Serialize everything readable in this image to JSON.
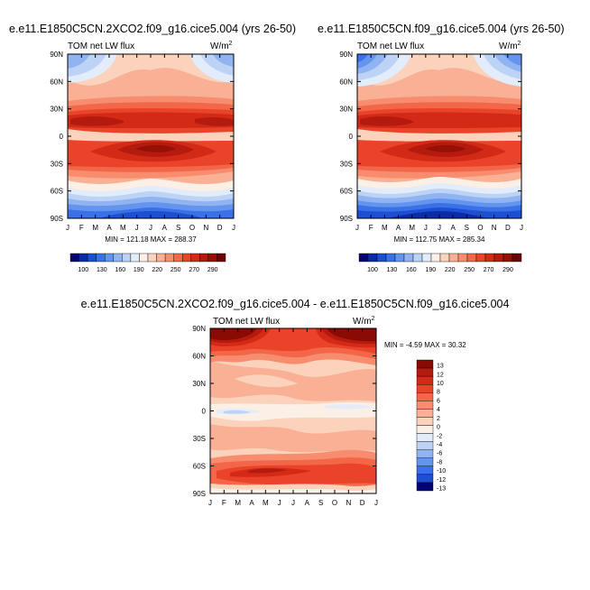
{
  "figure": {
    "units_prefix": "W/m",
    "units_exponent": "2",
    "months": [
      "J",
      "F",
      "M",
      "A",
      "M",
      "J",
      "J",
      "A",
      "S",
      "O",
      "N",
      "D",
      "J"
    ],
    "lat_labels": [
      "90N",
      "60N",
      "30N",
      "0",
      "30S",
      "60S",
      "90S"
    ]
  },
  "chart_data": [
    {
      "type": "heatmap",
      "id": "top_left",
      "title": "e.e11.E1850C5CN.2XCO2.f09_g16.cice5.004 (yrs 26-50)",
      "subtitle": "TOM net LW flux",
      "units": "W/m2",
      "x": [
        "J",
        "F",
        "M",
        "A",
        "M",
        "J",
        "J",
        "A",
        "S",
        "O",
        "N",
        "D",
        "J"
      ],
      "y": [
        "90N",
        "60N",
        "30N",
        "0",
        "30S",
        "60S",
        "90S"
      ],
      "ylim": [
        -90,
        90
      ],
      "stats_label": "MIN = 121.18 MAX = 288.37",
      "min": 121.18,
      "max": 288.37,
      "colorbar_levels": [
        "100",
        "130",
        "160",
        "190",
        "220",
        "250",
        "270",
        "290"
      ],
      "colorbar_colors": [
        "#030374",
        "#0c2ba6",
        "#1c4fd2",
        "#3b71e8",
        "#6495ee",
        "#90b4f1",
        "#bcd3f5",
        "#e2ecfa",
        "#fbefe6",
        "#fbd2bb",
        "#f9b094",
        "#f78d6e",
        "#f36648",
        "#e94429",
        "#d32a17",
        "#b51a0e",
        "#961007",
        "#6c0303"
      ]
    },
    {
      "type": "heatmap",
      "id": "top_right",
      "title": "e.e11.E1850C5CN.f09_g16.cice5.004 (yrs 26-50)",
      "subtitle": "TOM net LW flux",
      "units": "W/m2",
      "x": [
        "J",
        "F",
        "M",
        "A",
        "M",
        "J",
        "J",
        "A",
        "S",
        "O",
        "N",
        "D",
        "J"
      ],
      "y": [
        "90N",
        "60N",
        "30N",
        "0",
        "30S",
        "60S",
        "90S"
      ],
      "ylim": [
        -90,
        90
      ],
      "stats_label": "MIN = 112.75 MAX = 285.34",
      "min": 112.75,
      "max": 285.34,
      "colorbar_levels": [
        "100",
        "130",
        "160",
        "190",
        "220",
        "250",
        "270",
        "290"
      ],
      "colorbar_colors": [
        "#030374",
        "#0c2ba6",
        "#1c4fd2",
        "#3b71e8",
        "#6495ee",
        "#90b4f1",
        "#bcd3f5",
        "#e2ecfa",
        "#fbefe6",
        "#fbd2bb",
        "#f9b094",
        "#f78d6e",
        "#f36648",
        "#e94429",
        "#d32a17",
        "#b51a0e",
        "#961007",
        "#6c0303"
      ]
    },
    {
      "type": "heatmap",
      "id": "bottom_diff",
      "title": "e.e11.E1850C5CN.2XCO2.f09_g16.cice5.004 - e.e11.E1850C5CN.f09_g16.cice5.004",
      "subtitle": "TOM net LW flux",
      "units": "W/m2",
      "x": [
        "J",
        "F",
        "M",
        "A",
        "M",
        "J",
        "J",
        "A",
        "S",
        "O",
        "N",
        "D",
        "J"
      ],
      "y": [
        "90N",
        "60N",
        "30N",
        "0",
        "30S",
        "60S",
        "90S"
      ],
      "ylim": [
        -90,
        90
      ],
      "stats_label": "MIN =  -4.59 MAX =  30.32",
      "min": -4.59,
      "max": 30.32,
      "colorbar_levels": [
        "13",
        "12",
        "10",
        "8",
        "6",
        "4",
        "2",
        "0",
        "-2",
        "-4",
        "-6",
        "-8",
        "-10",
        "-12",
        "-13"
      ],
      "colorbar_colors": [
        "#8a0a04",
        "#b51a0e",
        "#d32a17",
        "#e94429",
        "#f36648",
        "#f78d6e",
        "#f9b094",
        "#fbd2bb",
        "#fbefe6",
        "#e2ecfa",
        "#bcd3f5",
        "#90b4f1",
        "#6495ee",
        "#3b71e8",
        "#1c4fd2",
        "#030374"
      ]
    }
  ]
}
